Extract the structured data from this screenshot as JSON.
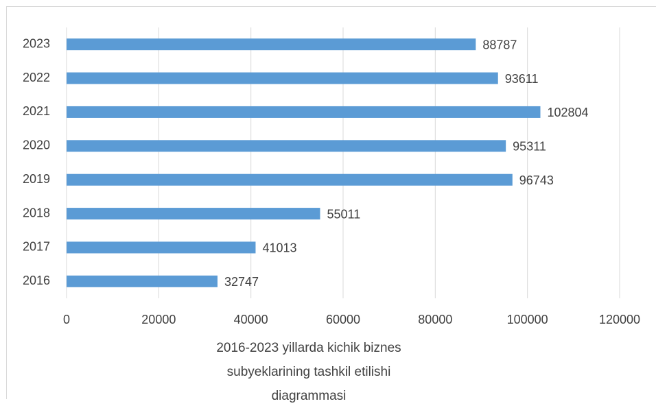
{
  "chart_data": {
    "type": "barh",
    "x_label": "2016-2023 yillarda kichik biznes subyeklarining tashkil etilishi diagrammasi",
    "categories": [
      "2023",
      "2022",
      "2021",
      "2020",
      "2019",
      "2018",
      "2017",
      "2016"
    ],
    "values": [
      88787,
      93611,
      102804,
      95311,
      96743,
      55011,
      41013,
      32747
    ],
    "color": "#5b9bd5",
    "xlim": [
      0,
      120000
    ],
    "xticks": [
      0,
      20000,
      40000,
      60000,
      80000,
      100000,
      120000
    ],
    "grid": true
  }
}
